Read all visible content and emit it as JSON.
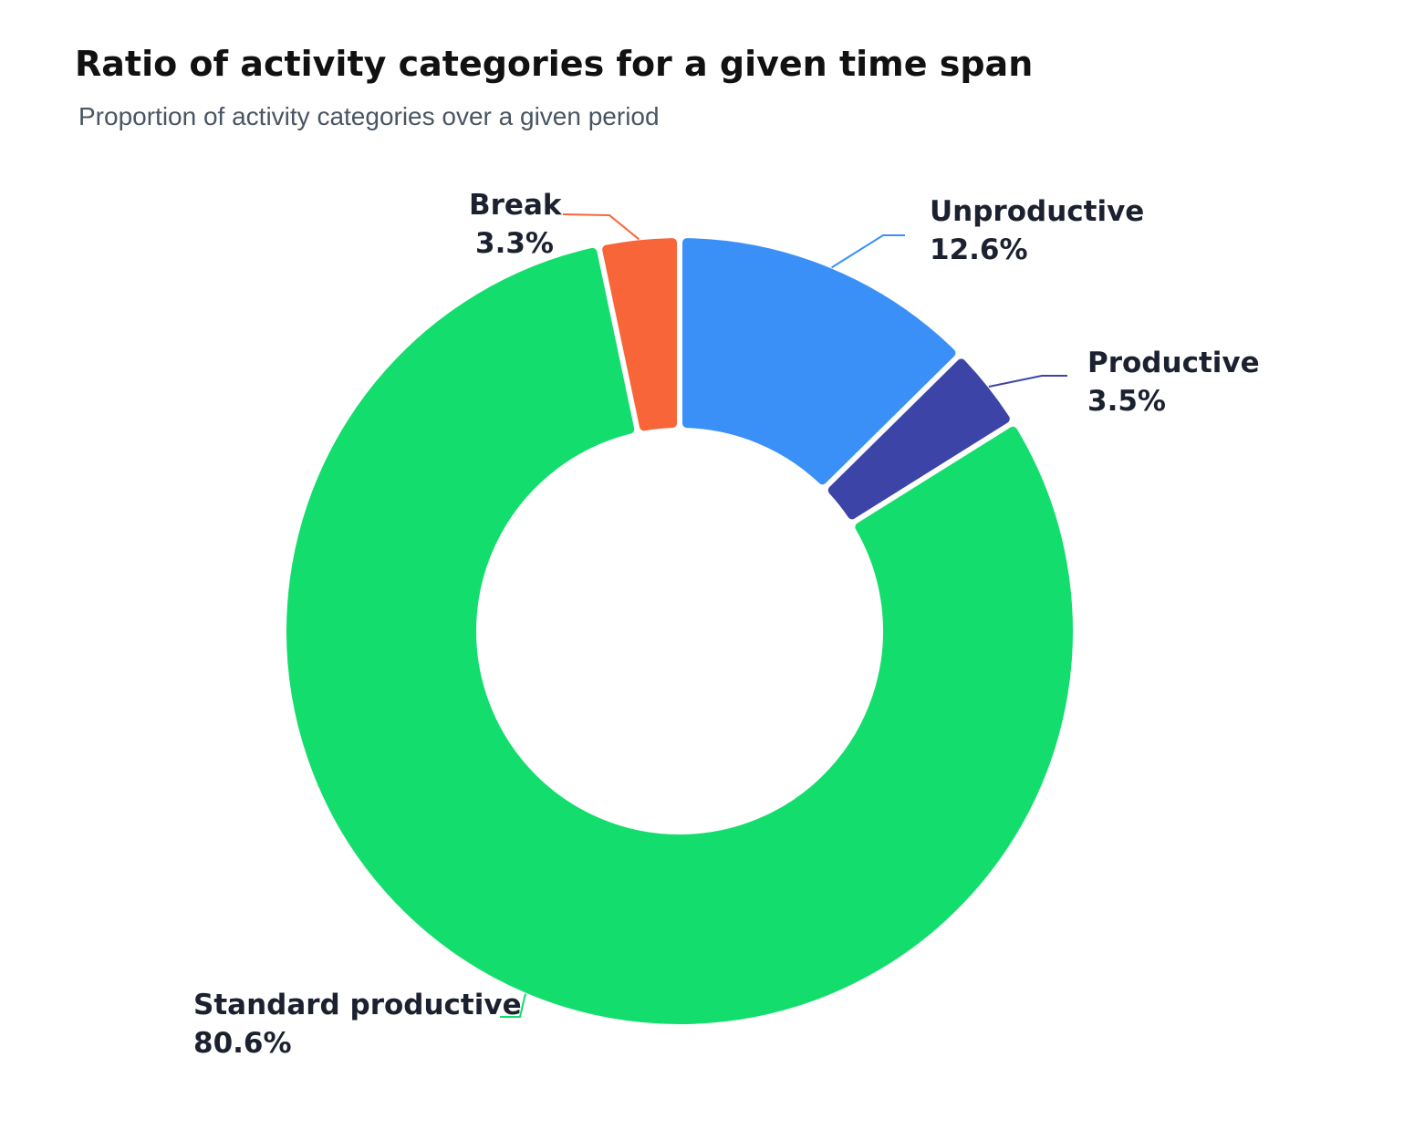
{
  "chart_data": {
    "type": "pie",
    "title": "Ratio of activity categories for a given time span",
    "subtitle": "Proportion of activity categories over a given period",
    "unit": "%",
    "donut": true,
    "start": "top",
    "direction": "clockwise",
    "slices": [
      {
        "name": "Unproductive",
        "value": 12.6,
        "label": "12.6%",
        "color": "#3a90f7"
      },
      {
        "name": "Productive",
        "value": 3.5,
        "label": "3.5%",
        "color": "#3d44a8"
      },
      {
        "name": "Standard productive",
        "value": 80.6,
        "label": "80.6%",
        "color": "#13dd6c"
      },
      {
        "name": "Break",
        "value": 3.3,
        "label": "3.3%",
        "color": "#f76539"
      }
    ]
  }
}
